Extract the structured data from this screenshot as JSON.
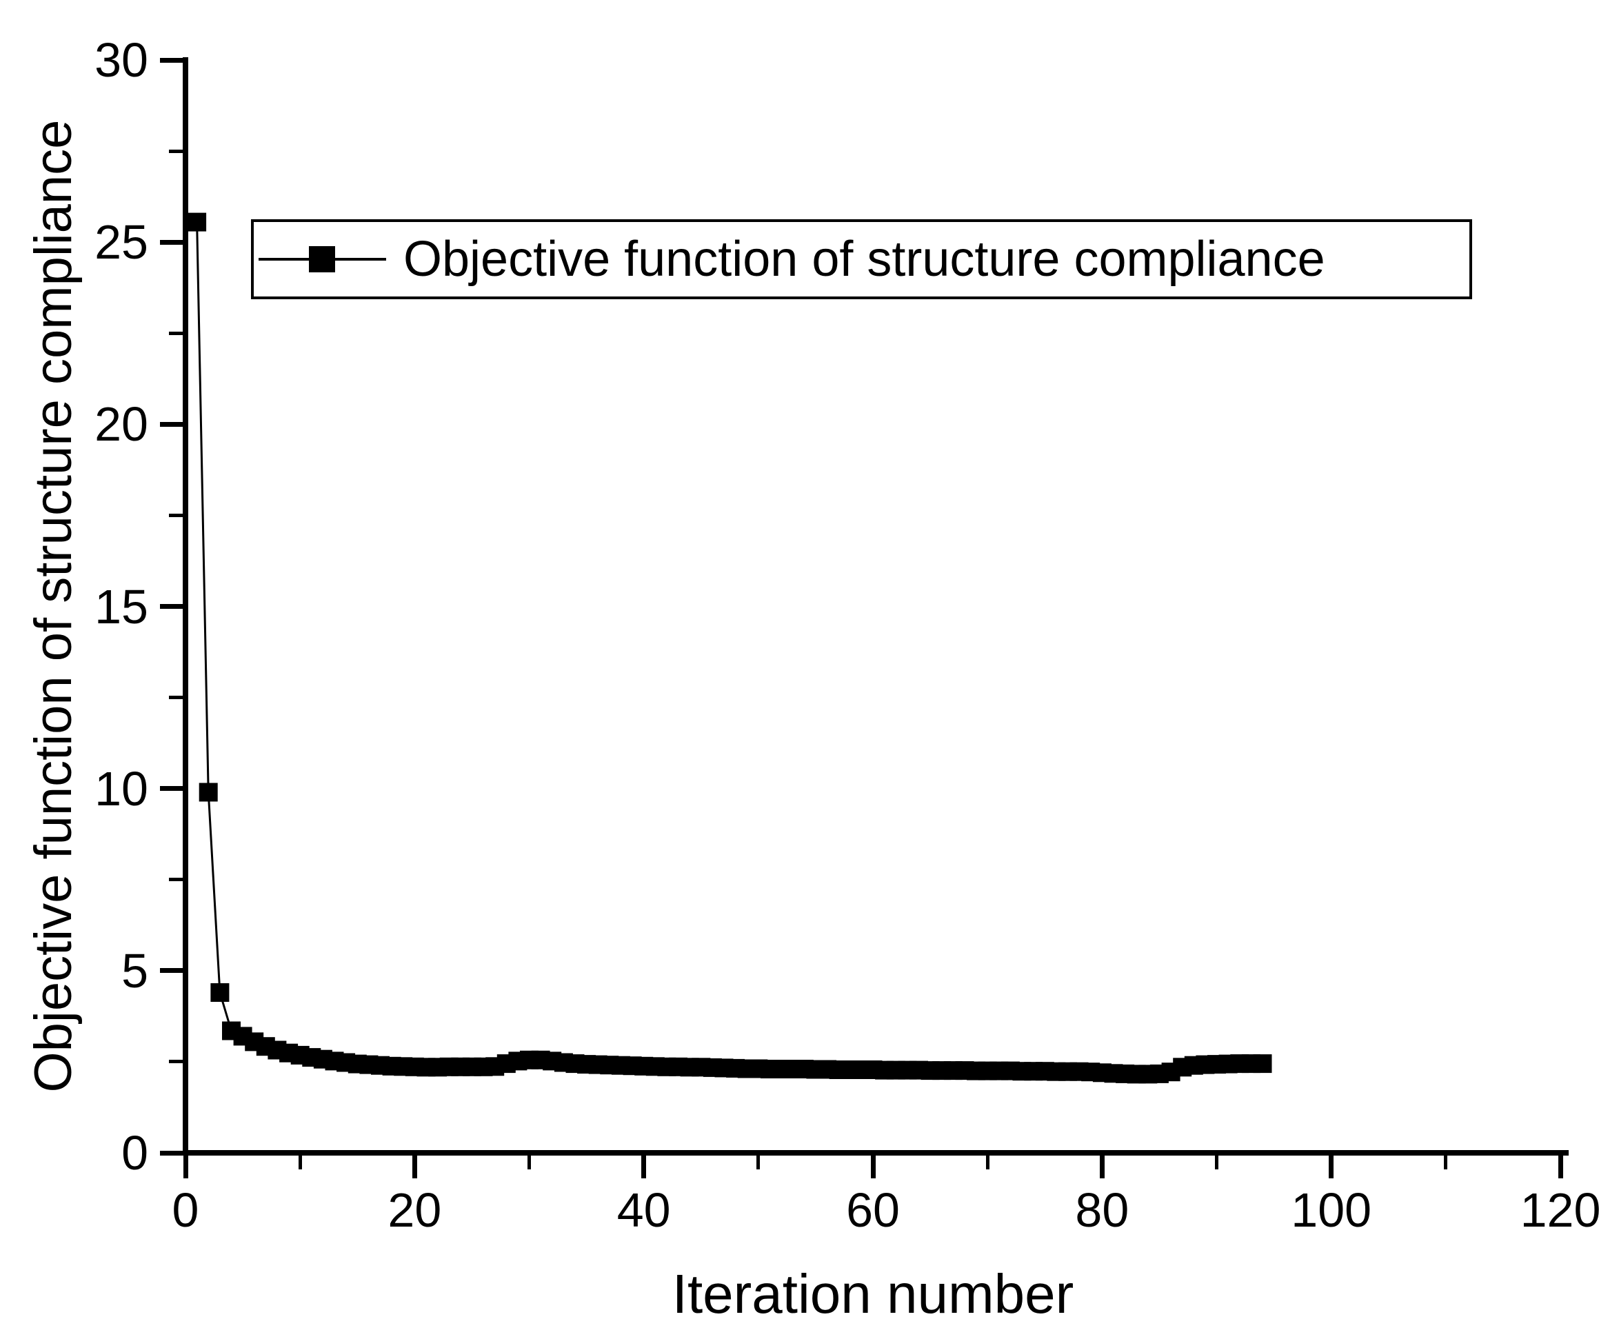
{
  "colors": {
    "series": "#000000",
    "axis": "#000000",
    "text": "#000000",
    "background": "#ffffff"
  },
  "chart_data": {
    "type": "line",
    "title": "",
    "xlabel": "Iteration number",
    "ylabel": "Objective function of structure compliance",
    "xlim": [
      0,
      120
    ],
    "ylim": [
      0,
      30
    ],
    "grid": false,
    "legend_position": "top-left-inside",
    "marker": "filled-square",
    "x_tick_labels": [
      "0",
      "20",
      "40",
      "60",
      "80",
      "100",
      "120"
    ],
    "x_major_ticks": [
      0,
      20,
      40,
      60,
      80,
      100,
      120
    ],
    "x_minor_ticks": [
      10,
      30,
      50,
      70,
      90,
      110
    ],
    "y_tick_labels": [
      "0",
      "5",
      "10",
      "15",
      "20",
      "25",
      "30"
    ],
    "y_major_ticks": [
      0,
      5,
      10,
      15,
      20,
      25,
      30
    ],
    "y_minor_ticks": [
      2.5,
      7.5,
      12.5,
      17.5,
      22.5,
      27.5
    ],
    "series": [
      {
        "name": "Objective function of structure compliance",
        "x": [
          1,
          2,
          3,
          4,
          5,
          6,
          7,
          8,
          9,
          10,
          11,
          12,
          13,
          14,
          15,
          16,
          17,
          18,
          19,
          20,
          21,
          22,
          23,
          24,
          25,
          26,
          27,
          28,
          29,
          30,
          31,
          32,
          33,
          34,
          35,
          36,
          37,
          38,
          39,
          40,
          41,
          42,
          43,
          44,
          45,
          46,
          47,
          48,
          49,
          50,
          51,
          52,
          53,
          54,
          55,
          56,
          57,
          58,
          59,
          60,
          61,
          62,
          63,
          64,
          65,
          66,
          67,
          68,
          69,
          70,
          71,
          72,
          73,
          74,
          75,
          76,
          77,
          78,
          79,
          80,
          81,
          82,
          83,
          84,
          85,
          86,
          87,
          88,
          89,
          90,
          91,
          92,
          93,
          94
        ],
        "y": [
          25.55,
          9.9,
          4.4,
          3.35,
          3.2,
          3.05,
          2.92,
          2.82,
          2.74,
          2.68,
          2.62,
          2.57,
          2.52,
          2.48,
          2.44,
          2.42,
          2.4,
          2.38,
          2.37,
          2.36,
          2.35,
          2.35,
          2.36,
          2.36,
          2.36,
          2.36,
          2.37,
          2.45,
          2.52,
          2.55,
          2.55,
          2.52,
          2.48,
          2.45,
          2.43,
          2.42,
          2.41,
          2.4,
          2.39,
          2.38,
          2.37,
          2.36,
          2.36,
          2.35,
          2.35,
          2.34,
          2.33,
          2.32,
          2.31,
          2.31,
          2.3,
          2.3,
          2.3,
          2.3,
          2.29,
          2.29,
          2.28,
          2.28,
          2.28,
          2.28,
          2.27,
          2.27,
          2.27,
          2.27,
          2.26,
          2.26,
          2.26,
          2.26,
          2.25,
          2.25,
          2.25,
          2.25,
          2.24,
          2.24,
          2.24,
          2.23,
          2.23,
          2.23,
          2.22,
          2.2,
          2.18,
          2.17,
          2.16,
          2.16,
          2.17,
          2.22,
          2.35,
          2.4,
          2.42,
          2.43,
          2.44,
          2.45,
          2.45,
          2.45
        ]
      }
    ]
  }
}
